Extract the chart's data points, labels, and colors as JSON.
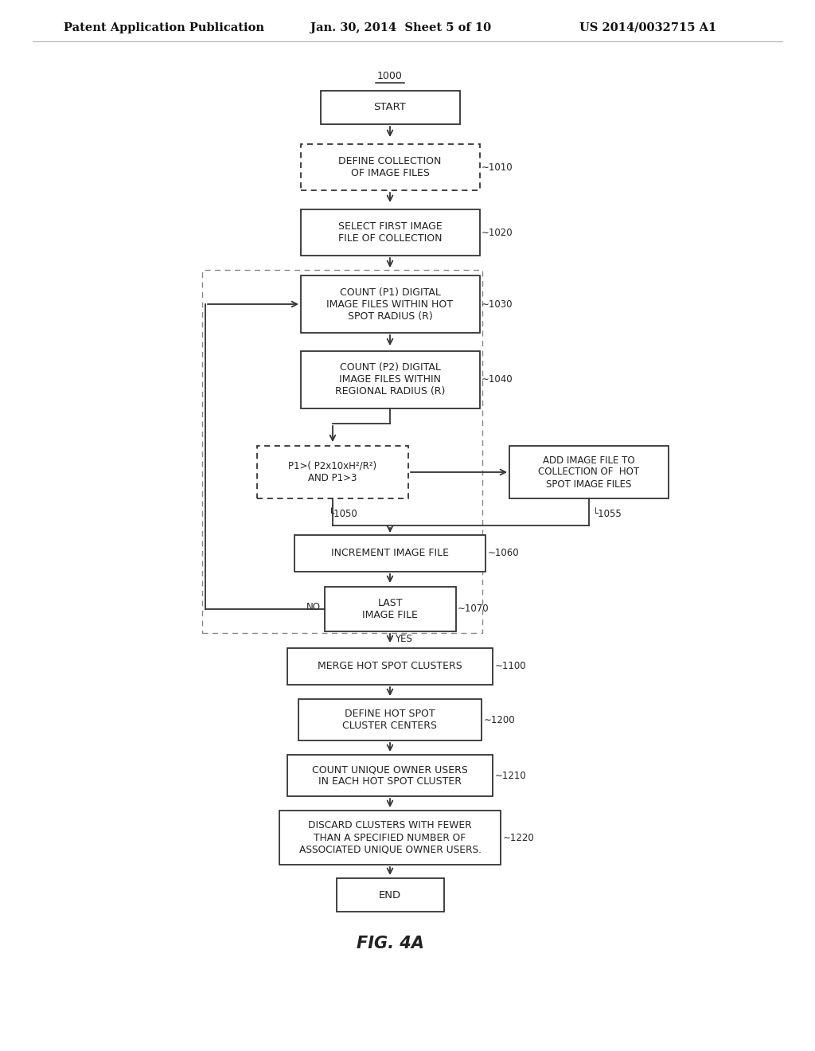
{
  "bg_color": "#ffffff",
  "header_left": "Patent Application Publication",
  "header_mid": "Jan. 30, 2014  Sheet 5 of 10",
  "header_right": "US 2014/0032715 A1",
  "figure_label": "FIG. 4A",
  "text_color": "#222222",
  "edge_color": "#333333"
}
